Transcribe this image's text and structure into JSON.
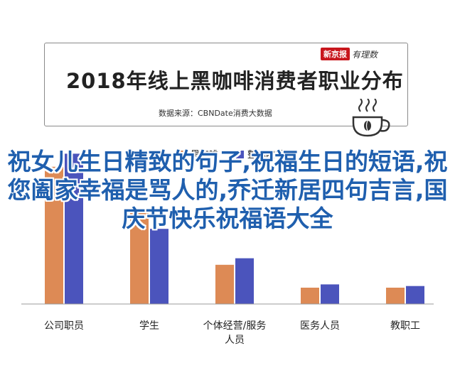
{
  "header": {
    "title": "2018年线上黑咖啡消费者职业分布",
    "source": "数据来源：CBNDate消费大数据",
    "brand_red": "新京报",
    "brand_script": "有理数"
  },
  "overlay_text": "祝女儿生日精致的句子,祝福生日的短语,祝您阖家幸福是骂人的,乔迁新居四句吉言,国庆节快乐祝福语大全",
  "colors": {
    "black_coffee": "#dd8a55",
    "whole_coffee": "#4b54bc",
    "title": "#222222",
    "overlay": "#1f5fae"
  },
  "icons": [
    "coffee-cup-icon"
  ],
  "chart_data": {
    "type": "bar",
    "categories": [
      "公司职员",
      "学生",
      "个体经营/服务人员",
      "医务人员",
      "教职工"
    ],
    "category_lines": [
      [
        "公司职员"
      ],
      [
        "学生"
      ],
      [
        "个体经营/服务",
        "人员"
      ],
      [
        "医务人员"
      ],
      [
        "教职工"
      ]
    ],
    "series": [
      {
        "name": "黑咖啡",
        "values": [
          42,
          28,
          12,
          5,
          5
        ]
      },
      {
        "name": "整体咖啡",
        "values": [
          46,
          23,
          14,
          6,
          5.5
        ]
      }
    ],
    "ylim": [
      0,
      50
    ],
    "legend": "top-center",
    "grid": false
  }
}
